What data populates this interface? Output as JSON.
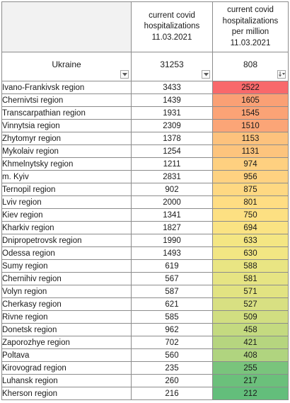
{
  "header": {
    "col_hosp_lines": [
      "current covid",
      "hospitalizations",
      "11.03.2021"
    ],
    "col_permil_lines": [
      "current covid",
      "hospitalizations",
      "per million",
      "11.03.2021"
    ]
  },
  "total": {
    "label": "Ukraine",
    "hospitalizations": "31253",
    "per_million": "808"
  },
  "rows": [
    {
      "region": "Ivano-Frankivsk region",
      "hosp": "3433",
      "per_million": "2522",
      "color": "#f8696b"
    },
    {
      "region": "Chernivtsi region",
      "hosp": "1439",
      "per_million": "1605",
      "color": "#faa075"
    },
    {
      "region": "Transcarpathian region",
      "hosp": "1931",
      "per_million": "1545",
      "color": "#fba376"
    },
    {
      "region": "Vinnytsia region",
      "hosp": "2309",
      "per_million": "1510",
      "color": "#fba577"
    },
    {
      "region": "Zhytomyr region",
      "hosp": "1378",
      "per_million": "1153",
      "color": "#fdc27d"
    },
    {
      "region": "Mykolaiv region",
      "hosp": "1254",
      "per_million": "1131",
      "color": "#fdc47d"
    },
    {
      "region": "Khmelnytsky region",
      "hosp": "1211",
      "per_million": "974",
      "color": "#fed080"
    },
    {
      "region": "m. Kyiv",
      "hosp": "2831",
      "per_million": "956",
      "color": "#fed281"
    },
    {
      "region": "Ternopil region",
      "hosp": "902",
      "per_million": "875",
      "color": "#fed882"
    },
    {
      "region": "Lviv region",
      "hosp": "2000",
      "per_million": "801",
      "color": "#ffdd83"
    },
    {
      "region": "Kiev region",
      "hosp": "1341",
      "per_million": "750",
      "color": "#fde082"
    },
    {
      "region": "Kharkiv region",
      "hosp": "1827",
      "per_million": "694",
      "color": "#fae383"
    },
    {
      "region": "Dnipropetrovsk region",
      "hosp": "1990",
      "per_million": "633",
      "color": "#f4e683"
    },
    {
      "region": "Odessa region",
      "hosp": "1493",
      "per_million": "630",
      "color": "#f2e683"
    },
    {
      "region": "Sumy region",
      "hosp": "619",
      "per_million": "588",
      "color": "#e9e583"
    },
    {
      "region": "Chernihiv region",
      "hosp": "567",
      "per_million": "581",
      "color": "#e6e483"
    },
    {
      "region": "Volyn region",
      "hosp": "587",
      "per_million": "571",
      "color": "#e2e382"
    },
    {
      "region": "Cherkasy region",
      "hosp": "621",
      "per_million": "527",
      "color": "#d8e082"
    },
    {
      "region": "Rivne region",
      "hosp": "585",
      "per_million": "509",
      "color": "#d1de81"
    },
    {
      "region": "Donetsk region",
      "hosp": "962",
      "per_million": "458",
      "color": "#c4da80"
    },
    {
      "region": "Zaporozhye region",
      "hosp": "702",
      "per_million": "421",
      "color": "#b6d57f"
    },
    {
      "region": "Poltava",
      "hosp": "560",
      "per_million": "408",
      "color": "#b0d47f"
    },
    {
      "region": "Kirovograd region",
      "hosp": "235",
      "per_million": "255",
      "color": "#79c47c"
    },
    {
      "region": "Luhansk region",
      "hosp": "260",
      "per_million": "217",
      "color": "#6bc07b"
    },
    {
      "region": "Kherson region",
      "hosp": "216",
      "per_million": "212",
      "color": "#63be7b"
    }
  ],
  "icons": {
    "filter_a": "filter-dropdown-icon",
    "filter_b": "filter-dropdown-icon",
    "filter_c": "sort-descending-filter-icon"
  }
}
